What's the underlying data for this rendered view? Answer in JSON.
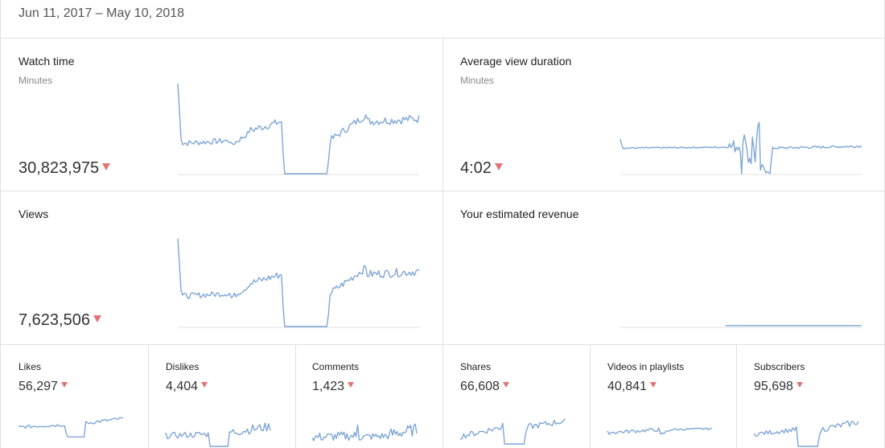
{
  "date_range": "Jun 11, 2017 – May 10, 2018",
  "colors": {
    "line": "#7ea6d6",
    "down_arrow": "#e57373",
    "divider": "#e0e0e0"
  },
  "icons": {
    "trend": "down-arrow-icon"
  },
  "cards": {
    "watch_time": {
      "title": "Watch time",
      "subtitle": "Minutes",
      "value": "30,823,975",
      "trend": "down"
    },
    "avg_view_duration": {
      "title": "Average view duration",
      "subtitle": "Minutes",
      "value": "4:02",
      "trend": "down"
    },
    "views": {
      "title": "Views",
      "value": "7,623,506",
      "trend": "down"
    },
    "revenue": {
      "title": "Your estimated revenue"
    }
  },
  "small_cards": [
    {
      "title": "Likes",
      "value": "56,297",
      "trend": "down"
    },
    {
      "title": "Dislikes",
      "value": "4,404",
      "trend": "down"
    },
    {
      "title": "Comments",
      "value": "1,423",
      "trend": "down"
    },
    {
      "title": "Shares",
      "value": "66,608",
      "trend": "down"
    },
    {
      "title": "Videos in playlists",
      "value": "40,841",
      "trend": "down"
    },
    {
      "title": "Subscribers",
      "value": "95,698",
      "trend": "down"
    }
  ]
}
